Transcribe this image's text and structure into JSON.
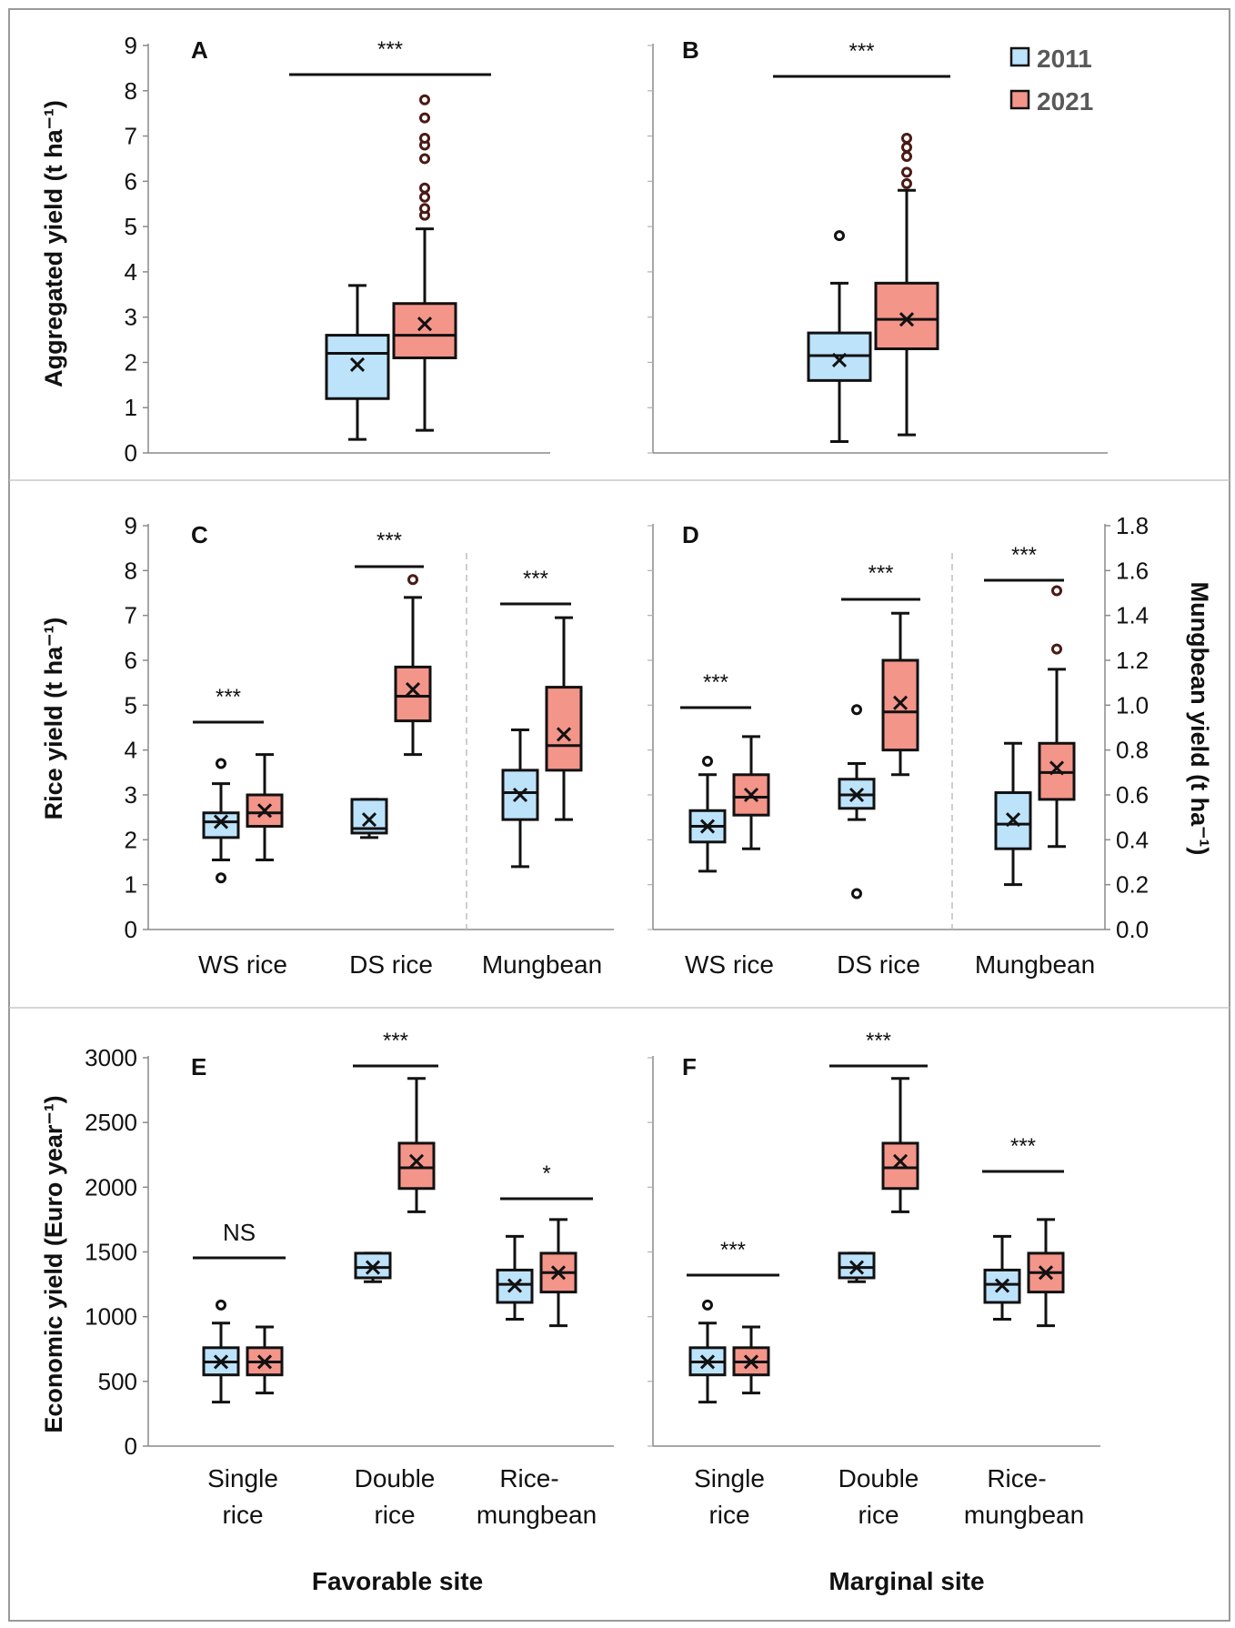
{
  "legend": {
    "items": [
      {
        "label": "2011",
        "color": "#bde3fb"
      },
      {
        "label": "2021",
        "color": "#f4958a"
      }
    ],
    "placement": "top-right of panel B"
  },
  "row_labels": {
    "aggregated": "Aggregated yield (t ha⁻¹)",
    "rice": "Rice yield (t ha⁻¹)",
    "mungbean": "Mungbean yield (t ha⁻¹)",
    "economic": "Economic yield (Euro year⁻¹)"
  },
  "sites": {
    "favorable": "Favorable site",
    "marginal": "Marginal site"
  },
  "colors": {
    "c2011": "#bde3fb",
    "c2021": "#f4958a",
    "outline": "#111111",
    "frame": "#9a9a9a"
  },
  "chart_data": [
    {
      "panel": "A",
      "type": "box",
      "site": "Favorable site",
      "ylabel": "Aggregated yield (t ha⁻¹)",
      "ylim": [
        0,
        9
      ],
      "yticks": [
        0,
        1,
        2,
        3,
        4,
        5,
        6,
        7,
        8,
        9
      ],
      "categories": [
        ""
      ],
      "series": [
        {
          "name": "2011",
          "boxes": [
            {
              "min": 0.3,
              "q1": 1.2,
              "median": 2.2,
              "q3": 2.6,
              "max": 3.7,
              "mean": 1.95,
              "outliers": []
            }
          ]
        },
        {
          "name": "2021",
          "boxes": [
            {
              "min": 0.5,
              "q1": 2.1,
              "median": 2.6,
              "q3": 3.3,
              "max": 4.95,
              "mean": 2.85,
              "outliers": [
                5.25,
                5.4,
                5.65,
                5.85,
                6.5,
                6.8,
                6.95,
                7.4,
                7.8
              ]
            }
          ]
        }
      ],
      "significance": [
        "***"
      ]
    },
    {
      "panel": "B",
      "type": "box",
      "site": "Marginal site",
      "ylabel": "Aggregated yield (t ha⁻¹)",
      "ylim": [
        0,
        9
      ],
      "categories": [
        ""
      ],
      "series": [
        {
          "name": "2011",
          "boxes": [
            {
              "min": 0.25,
              "q1": 1.6,
              "median": 2.15,
              "q3": 2.65,
              "max": 3.75,
              "mean": 2.05,
              "outliers": [
                4.8
              ]
            }
          ]
        },
        {
          "name": "2021",
          "boxes": [
            {
              "min": 0.4,
              "q1": 2.3,
              "median": 2.95,
              "q3": 3.75,
              "max": 5.8,
              "mean": 2.95,
              "outliers": [
                5.95,
                6.2,
                6.55,
                6.75,
                6.95
              ]
            }
          ]
        }
      ],
      "significance": [
        "***"
      ]
    },
    {
      "panel": "C",
      "type": "box",
      "site": "Favorable site",
      "ylabel": "Rice yield (t ha⁻¹)",
      "ylim": [
        0,
        9
      ],
      "yticks": [
        0,
        1,
        2,
        3,
        4,
        5,
        6,
        7,
        8,
        9
      ],
      "categories": [
        "WS rice",
        "DS rice",
        "Mungbean"
      ],
      "mungbean_on_secondary_axis": true,
      "series": [
        {
          "name": "2011",
          "boxes": [
            {
              "min": 1.55,
              "q1": 2.05,
              "median": 2.4,
              "q3": 2.6,
              "max": 3.25,
              "mean": 2.4,
              "outliers": [
                1.15,
                3.7
              ]
            },
            {
              "min": 2.05,
              "q1": 2.15,
              "median": 2.25,
              "q3": 2.9,
              "max": 2.9,
              "mean": 2.45,
              "outliers": []
            },
            {
              "min": 0.28,
              "q1": 0.49,
              "median": 0.61,
              "q3": 0.71,
              "max": 0.89,
              "mean": 0.6,
              "outliers": []
            }
          ]
        },
        {
          "name": "2021",
          "boxes": [
            {
              "min": 1.55,
              "q1": 2.3,
              "median": 2.6,
              "q3": 3.0,
              "max": 3.9,
              "mean": 2.65,
              "outliers": []
            },
            {
              "min": 3.9,
              "q1": 4.65,
              "median": 5.2,
              "q3": 5.85,
              "max": 7.4,
              "mean": 5.35,
              "outliers": [
                7.8
              ]
            },
            {
              "min": 0.49,
              "q1": 0.71,
              "median": 0.82,
              "q3": 1.08,
              "max": 1.39,
              "mean": 0.87,
              "outliers": []
            }
          ]
        }
      ],
      "significance": [
        "***",
        "***",
        "***"
      ]
    },
    {
      "panel": "D",
      "type": "box",
      "site": "Marginal site",
      "ylabel": "Rice yield (t ha⁻¹)",
      "y2label": "Mungbean yield (t ha⁻¹)",
      "ylim": [
        0,
        9
      ],
      "y2lim": [
        0,
        1.8
      ],
      "y2ticks": [
        "0.0",
        "0.2",
        "0.4",
        "0.6",
        "0.8",
        "1.0",
        "1.2",
        "1.4",
        "1.6",
        "1.8"
      ],
      "categories": [
        "WS rice",
        "DS rice",
        "Mungbean"
      ],
      "mungbean_on_secondary_axis": true,
      "series": [
        {
          "name": "2011",
          "boxes": [
            {
              "min": 1.3,
              "q1": 1.95,
              "median": 2.3,
              "q3": 2.65,
              "max": 3.45,
              "mean": 2.3,
              "outliers": [
                3.75
              ]
            },
            {
              "min": 2.45,
              "q1": 2.7,
              "median": 3.0,
              "q3": 3.35,
              "max": 3.7,
              "mean": 3.0,
              "outliers": [
                0.8,
                4.9
              ]
            },
            {
              "min": 0.2,
              "q1": 0.36,
              "median": 0.47,
              "q3": 0.61,
              "max": 0.83,
              "mean": 0.49,
              "outliers": []
            }
          ]
        },
        {
          "name": "2021",
          "boxes": [
            {
              "min": 1.8,
              "q1": 2.55,
              "median": 2.95,
              "q3": 3.45,
              "max": 4.3,
              "mean": 3.0,
              "outliers": []
            },
            {
              "min": 3.45,
              "q1": 4.0,
              "median": 4.85,
              "q3": 6.0,
              "max": 7.05,
              "mean": 5.05,
              "outliers": []
            },
            {
              "min": 0.37,
              "q1": 0.58,
              "median": 0.7,
              "q3": 0.83,
              "max": 1.16,
              "mean": 0.72,
              "outliers": [
                1.25,
                1.51
              ]
            }
          ]
        }
      ],
      "significance": [
        "***",
        "***",
        "***"
      ]
    },
    {
      "panel": "E",
      "type": "box",
      "site": "Favorable site",
      "ylabel": "Economic yield (Euro year⁻¹)",
      "ylim": [
        0,
        3000
      ],
      "yticks": [
        0,
        500,
        1000,
        1500,
        2000,
        2500,
        3000
      ],
      "categories": [
        "Single rice",
        "Double rice",
        "Rice-mungbean"
      ],
      "category_lines": [
        [
          "Single",
          "rice"
        ],
        [
          "Double",
          "rice"
        ],
        [
          "Rice-",
          "mungbean"
        ]
      ],
      "series": [
        {
          "name": "2011",
          "boxes": [
            {
              "min": 340,
              "q1": 550,
              "median": 650,
              "q3": 760,
              "max": 950,
              "mean": 650,
              "outliers": [
                1090
              ]
            },
            {
              "min": 1270,
              "q1": 1300,
              "median": 1380,
              "q3": 1490,
              "max": 1490,
              "mean": 1380,
              "outliers": []
            },
            {
              "min": 980,
              "q1": 1110,
              "median": 1250,
              "q3": 1360,
              "max": 1620,
              "mean": 1240,
              "outliers": []
            }
          ]
        },
        {
          "name": "2021",
          "boxes": [
            {
              "min": 410,
              "q1": 550,
              "median": 650,
              "q3": 760,
              "max": 920,
              "mean": 650,
              "outliers": []
            },
            {
              "min": 1810,
              "q1": 1990,
              "median": 2150,
              "q3": 2340,
              "max": 2840,
              "mean": 2200,
              "outliers": []
            },
            {
              "min": 930,
              "q1": 1190,
              "median": 1340,
              "q3": 1490,
              "max": 1750,
              "mean": 1340,
              "outliers": []
            }
          ]
        }
      ],
      "significance": [
        "NS",
        "***",
        "*"
      ]
    },
    {
      "panel": "F",
      "type": "box",
      "site": "Marginal site",
      "ylabel": "Economic yield (Euro year⁻¹)",
      "ylim": [
        0,
        3000
      ],
      "categories": [
        "Single rice",
        "Double rice",
        "Rice-mungbean"
      ],
      "category_lines": [
        [
          "Single",
          "rice"
        ],
        [
          "Double",
          "rice"
        ],
        [
          "Rice-",
          "mungbean"
        ]
      ],
      "series": [
        {
          "name": "2011",
          "boxes": [
            {
              "min": 340,
              "q1": 550,
              "median": 650,
              "q3": 760,
              "max": 950,
              "mean": 650,
              "outliers": [
                1090
              ]
            },
            {
              "min": 1270,
              "q1": 1300,
              "median": 1380,
              "q3": 1490,
              "max": 1490,
              "mean": 1380,
              "outliers": []
            },
            {
              "min": 980,
              "q1": 1110,
              "median": 1250,
              "q3": 1360,
              "max": 1620,
              "mean": 1240,
              "outliers": []
            }
          ]
        },
        {
          "name": "2021",
          "boxes": [
            {
              "min": 410,
              "q1": 550,
              "median": 650,
              "q3": 760,
              "max": 920,
              "mean": 650,
              "outliers": []
            },
            {
              "min": 1810,
              "q1": 1990,
              "median": 2150,
              "q3": 2340,
              "max": 2840,
              "mean": 2200,
              "outliers": []
            },
            {
              "min": 930,
              "q1": 1190,
              "median": 1340,
              "q3": 1490,
              "max": 1750,
              "mean": 1340,
              "outliers": []
            }
          ]
        }
      ],
      "significance": [
        "***",
        "***",
        "***"
      ]
    }
  ]
}
